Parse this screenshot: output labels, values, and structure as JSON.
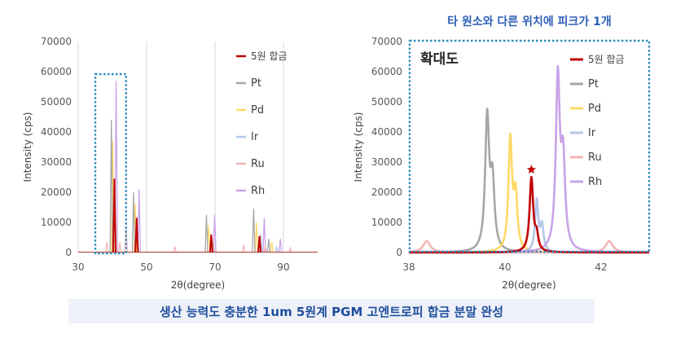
{
  "annotation": "타 원소와 다른 위치에 피크가 1개",
  "caption": "생산 능력도 충분한 1um 5원계 PGM 고엔트로피 합금 분말 완성",
  "zoom_label": "확대도",
  "chart_data": [
    {
      "type": "line",
      "xlabel": "2θ(degree)",
      "ylabel": "Intensity (cps)",
      "xlim": [
        30,
        100
      ],
      "ylim": [
        0,
        70000
      ],
      "xticks": [
        30,
        50,
        70,
        90
      ],
      "yticks": [
        0,
        10000,
        20000,
        30000,
        40000,
        50000,
        60000,
        70000
      ],
      "grid": true,
      "legend_position": "top-right",
      "series": [
        {
          "name": "5원 합금",
          "color": "#c00000",
          "peaks": [
            [
              40.6,
              24500
            ],
            [
              47.1,
              11500
            ],
            [
              68.9,
              6000
            ],
            [
              83.0,
              5500
            ]
          ]
        },
        {
          "name": "Pt",
          "color": "#a6a6a6",
          "peaks": [
            [
              39.7,
              44000
            ],
            [
              46.2,
              20000
            ],
            [
              67.5,
              12500
            ],
            [
              81.3,
              14500
            ],
            [
              85.7,
              4500
            ]
          ]
        },
        {
          "name": "Pd",
          "color": "#ffd966",
          "peaks": [
            [
              40.1,
              37000
            ],
            [
              46.7,
              16000
            ],
            [
              68.1,
              9000
            ],
            [
              82.1,
              10000
            ],
            [
              86.6,
              3500
            ]
          ]
        },
        {
          "name": "Ir",
          "color": "#b4c7e7",
          "peaks": [
            [
              40.6,
              17000
            ],
            [
              47.3,
              8000
            ],
            [
              69.1,
              5000
            ],
            [
              83.4,
              6000
            ],
            [
              88.0,
              2000
            ]
          ]
        },
        {
          "name": "Ru",
          "color": "#f4b6b6",
          "peaks": [
            [
              38.4,
              3500
            ],
            [
              42.2,
              3500
            ],
            [
              44.0,
              8000
            ],
            [
              58.3,
              2000
            ],
            [
              69.4,
              3500
            ],
            [
              78.4,
              2500
            ],
            [
              84.7,
              2500
            ],
            [
              92.0,
              1500
            ]
          ]
        },
        {
          "name": "Rh",
          "color": "#c9a2e8",
          "peaks": [
            [
              41.1,
              57000
            ],
            [
              47.8,
              21000
            ],
            [
              69.9,
              12500
            ],
            [
              84.4,
              11500
            ],
            [
              89.1,
              4500
            ]
          ]
        }
      ]
    },
    {
      "type": "line",
      "title_annotation": "확대도",
      "xlabel": "2θ(degree)",
      "ylabel": "Intensity (cps)",
      "xlim": [
        38,
        43
      ],
      "ylim": [
        0,
        70000
      ],
      "xticks": [
        38,
        40,
        42
      ],
      "yticks": [
        0,
        10000,
        20000,
        30000,
        40000,
        50000,
        60000,
        70000
      ],
      "grid": false,
      "legend_position": "top-right",
      "marker": {
        "shape": "star",
        "x": 40.55,
        "y": 27500,
        "color": "#c00000"
      },
      "series": [
        {
          "name": "5원 합금",
          "color": "#c00000",
          "peaks": [
            [
              40.55,
              24500,
              0.045
            ],
            [
              40.66,
              5000,
              0.04
            ]
          ]
        },
        {
          "name": "Pt",
          "color": "#a6a6a6",
          "peaks": [
            [
              39.63,
              44000,
              0.05
            ],
            [
              39.74,
              22000,
              0.05
            ]
          ]
        },
        {
          "name": "Pd",
          "color": "#ffd966",
          "peaks": [
            [
              40.11,
              37000,
              0.045
            ],
            [
              40.22,
              18000,
              0.045
            ]
          ]
        },
        {
          "name": "Ir",
          "color": "#b4c7e7",
          "peaks": [
            [
              40.66,
              17000,
              0.04
            ],
            [
              40.77,
              8500,
              0.04
            ]
          ]
        },
        {
          "name": "Ru",
          "color": "#f4b6b6",
          "peaks": [
            [
              38.37,
              3800,
              0.09
            ],
            [
              42.17,
              3800,
              0.09
            ]
          ]
        },
        {
          "name": "Rh",
          "color": "#c9a2e8",
          "peaks": [
            [
              41.1,
              57000,
              0.05
            ],
            [
              41.21,
              28500,
              0.05
            ]
          ]
        }
      ]
    }
  ]
}
